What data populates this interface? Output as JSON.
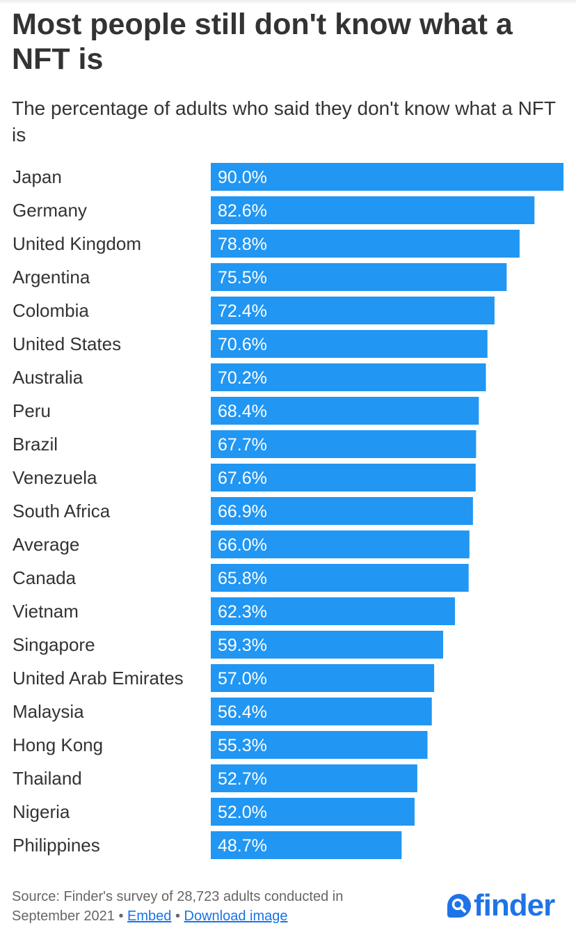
{
  "header": {
    "title": "Most people still don't know what a NFT is",
    "subtitle": "The percentage of adults who said they don't know what a NFT is"
  },
  "chart_data": {
    "type": "bar",
    "orientation": "horizontal",
    "title": "Most people still don't know what a NFT is",
    "subtitle": "The percentage of adults who said they don't know what a NFT is",
    "categories": [
      "Japan",
      "Germany",
      "United Kingdom",
      "Argentina",
      "Colombia",
      "United States",
      "Australia",
      "Peru",
      "Brazil",
      "Venezuela",
      "South Africa",
      "Average",
      "Canada",
      "Vietnam",
      "Singapore",
      "United Arab Emirates",
      "Malaysia",
      "Hong Kong",
      "Thailand",
      "Nigeria",
      "Philippines"
    ],
    "values": [
      90.0,
      82.6,
      78.8,
      75.5,
      72.4,
      70.6,
      70.2,
      68.4,
      67.7,
      67.6,
      66.9,
      66.0,
      65.8,
      62.3,
      59.3,
      57.0,
      56.4,
      55.3,
      52.7,
      52.0,
      48.7
    ],
    "value_labels": [
      "90.0%",
      "82.6%",
      "78.8%",
      "75.5%",
      "72.4%",
      "70.6%",
      "70.2%",
      "68.4%",
      "67.7%",
      "67.6%",
      "66.9%",
      "66.0%",
      "65.8%",
      "62.3%",
      "59.3%",
      "57.0%",
      "56.4%",
      "55.3%",
      "52.7%",
      "52.0%",
      "48.7%"
    ],
    "xlim": [
      0,
      90
    ],
    "grid": false,
    "legend": "none",
    "bar_color": "#2196f3"
  },
  "footer": {
    "source_text": "Source: Finder's survey of 28,723 adults conducted in September 2021",
    "separator": "•",
    "embed_label": "Embed",
    "download_label": "Download image"
  },
  "logo": {
    "text": "finder",
    "icon": "search-icon",
    "color": "#1e73e8"
  }
}
